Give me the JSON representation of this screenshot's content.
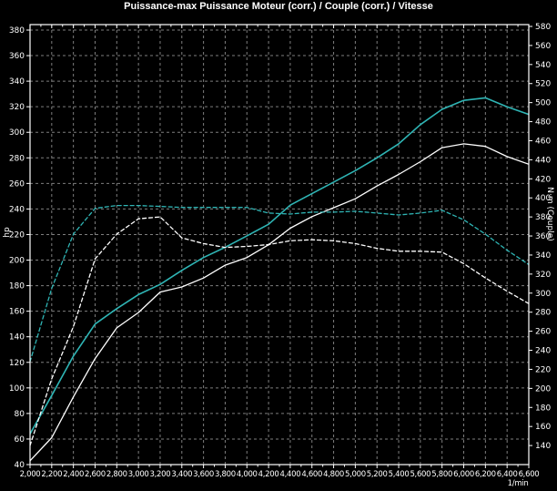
{
  "title": "Puissance-max Puissance Moteur (corr.) / Couple (corr.) / Vitesse",
  "colors": {
    "background": "#000000",
    "grid": "#7e7e7e",
    "frame": "#ffffff",
    "text": "#ffffff",
    "accent_cyan": "#2fb5b5",
    "curve_white": "#ffffff"
  },
  "chart_data": {
    "type": "line",
    "x": [
      2000,
      2200,
      2400,
      2600,
      2800,
      3000,
      3200,
      3400,
      3600,
      3800,
      4000,
      4200,
      4400,
      4600,
      4800,
      5000,
      5200,
      5400,
      5600,
      5800,
      6000,
      6200,
      6400,
      6600
    ],
    "x_axis": {
      "label": "1/min",
      "min": 2000,
      "max": 6600,
      "tick_step": 200,
      "minor_tick_step": 100,
      "tick_labels": [
        "2,000",
        "2,200",
        "2,400",
        "2,600",
        "2,800",
        "3,000",
        "3,200",
        "3,400",
        "3,600",
        "3,800",
        "4,000",
        "4,200",
        "4,400",
        "4,600",
        "4,800",
        "5,000",
        "5,200",
        "5,400",
        "5,600",
        "5,800",
        "6,000",
        "6,200",
        "6,400",
        "6,600"
      ]
    },
    "left_axis": {
      "label": "hp",
      "min": 40,
      "max": 380,
      "tick_step": 20,
      "grid": true
    },
    "right_axis": {
      "label": "N·m (Couple)",
      "min": 120,
      "max": 580,
      "first_label": 140,
      "tick_step": 20,
      "grid": false
    },
    "series": [
      {
        "name": "puissance-moteur-corrigee",
        "legend": "Puissance Moteur (corr.)",
        "unit": "hp",
        "axis": "left",
        "color": "#2fb5b5",
        "style": "solid",
        "peak": 327,
        "values": [
          64,
          94,
          125,
          150,
          162,
          173,
          181,
          192,
          202,
          210,
          219,
          228,
          243,
          252,
          261,
          270,
          280,
          291,
          306,
          318,
          325,
          327,
          320,
          314
        ]
      },
      {
        "name": "puissance-origine",
        "legend": "Puissance",
        "unit": "hp",
        "axis": "left",
        "color": "#ffffff",
        "style": "solid",
        "peak": 291,
        "values": [
          43,
          61,
          93,
          123,
          147,
          159,
          175,
          179,
          186,
          196,
          202,
          212,
          225,
          234,
          241,
          248,
          258,
          267,
          277,
          288,
          291,
          289,
          281,
          275
        ]
      },
      {
        "name": "couple-corrige",
        "legend": "Couple (corr.)",
        "unit": "N·m",
        "axis": "right",
        "color": "#2fb5b5",
        "style": "dashed",
        "peak": 392,
        "values": [
          228,
          305,
          362,
          389,
          392,
          392,
          391,
          390,
          390,
          390,
          390,
          384,
          383,
          385,
          385,
          386,
          384,
          382,
          384,
          387,
          377,
          362,
          345,
          330
        ]
      },
      {
        "name": "couple-origine",
        "legend": "Couple",
        "unit": "N·m",
        "axis": "right",
        "color": "#ffffff",
        "style": "dashed",
        "peak": 380,
        "values": [
          140,
          210,
          265,
          336,
          362,
          378,
          380,
          358,
          352,
          348,
          349,
          351,
          355,
          356,
          355,
          352,
          347,
          344,
          344,
          343,
          331,
          316,
          302,
          289
        ]
      }
    ]
  }
}
